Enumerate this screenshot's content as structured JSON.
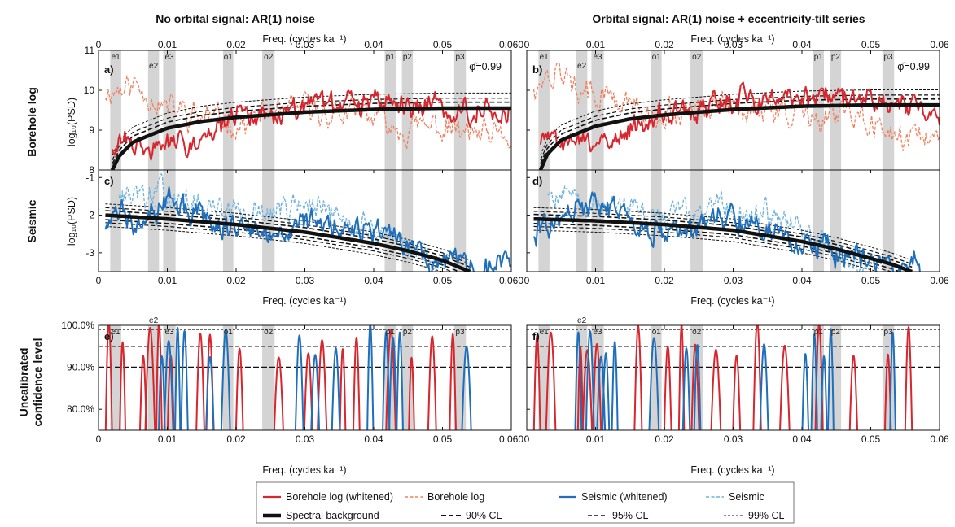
{
  "figure": {
    "col_titles": [
      "No orbital signal: AR(1) noise",
      "Orbital signal: AR(1) noise + eccentricity-tilt series"
    ],
    "row_labels": [
      "Borehole log",
      "Seismic",
      "Uncalibrated",
      "confidence level"
    ],
    "xlabel": "Freq. (cycles ka⁻¹)",
    "ylabel_psd": "log₁₀(PSD)",
    "phi_label": "φ̂=0.99"
  },
  "colors": {
    "borehole_whitened": "#d7262e",
    "borehole_raw": "#f08060",
    "seismic_whitened": "#1f6fba",
    "seismic_raw": "#6fb2dd",
    "background": "#111111",
    "band": "#d4d4d4"
  },
  "legend": {
    "items": [
      {
        "label": "Borehole log (whitened)",
        "style": "borehole_whitened"
      },
      {
        "label": "Borehole log",
        "style": "borehole_raw"
      },
      {
        "label": "Seismic (whitened)",
        "style": "seismic_whitened"
      },
      {
        "label": "Seismic",
        "style": "seismic_raw"
      },
      {
        "label": "Spectral background",
        "style": "background"
      },
      {
        "label": "90% CL",
        "style": "cl90"
      },
      {
        "label": "95% CL",
        "style": "cl95"
      },
      {
        "label": "99% CL",
        "style": "cl99"
      }
    ]
  },
  "chart_data": [
    {
      "type": "line",
      "panel": "a)",
      "title": "No orbital signal: AR(1) noise",
      "ylabel": "log₁₀(PSD)",
      "xlim": [
        0,
        0.06
      ],
      "ylim": [
        8,
        11
      ],
      "xticks": [
        "0",
        "0.01",
        "0.02",
        "0.03",
        "0.04",
        "0.05",
        "0.060"
      ],
      "yticks": [
        "8",
        "9",
        "10",
        "11"
      ],
      "annotation": "φ̂=0.99",
      "bands": [
        {
          "name": "e1",
          "range": [
            0.0017,
            0.0033
          ]
        },
        {
          "name": "e2",
          "range": [
            0.0072,
            0.0088
          ]
        },
        {
          "name": "e3",
          "range": [
            0.0094,
            0.0112
          ]
        },
        {
          "name": "o1",
          "range": [
            0.0181,
            0.0196
          ]
        },
        {
          "name": "o2",
          "range": [
            0.0238,
            0.0256
          ]
        },
        {
          "name": "p1",
          "range": [
            0.0416,
            0.0432
          ]
        },
        {
          "name": "p2",
          "range": [
            0.0441,
            0.0457
          ]
        },
        {
          "name": "p3",
          "range": [
            0.0517,
            0.0534
          ]
        }
      ],
      "background": {
        "x": [
          0.002,
          0.003,
          0.005,
          0.01,
          0.015,
          0.02,
          0.03,
          0.04,
          0.05,
          0.06
        ],
        "y": [
          8.0,
          8.35,
          8.7,
          9.05,
          9.22,
          9.32,
          9.45,
          9.52,
          9.55,
          9.55
        ]
      },
      "series": [
        {
          "name": "Borehole log (whitened)",
          "x": [
            0.002,
            0.005,
            0.01,
            0.02,
            0.03,
            0.04,
            0.05,
            0.06
          ],
          "y": [
            8.7,
            8.6,
            8.5,
            9.3,
            9.6,
            9.7,
            9.6,
            9.5
          ]
        },
        {
          "name": "Borehole log",
          "x": [
            0.001,
            0.005,
            0.01,
            0.02,
            0.03,
            0.04,
            0.05,
            0.06
          ],
          "y": [
            10.0,
            10.2,
            9.6,
            9.2,
            9.5,
            9.3,
            9.0,
            8.6
          ]
        }
      ]
    },
    {
      "type": "line",
      "panel": "b)",
      "title": "Orbital signal: AR(1) noise + eccentricity-tilt series",
      "xlim": [
        0,
        0.06
      ],
      "ylim": [
        8,
        11
      ],
      "xticks": [
        "0",
        "0.01",
        "0.02",
        "0.03",
        "0.04",
        "0.05",
        "0.06"
      ],
      "annotation": "φ̂=0.99",
      "background": {
        "x": [
          0.002,
          0.003,
          0.005,
          0.01,
          0.015,
          0.02,
          0.03,
          0.04,
          0.05,
          0.06
        ],
        "y": [
          8.0,
          8.4,
          8.75,
          9.1,
          9.28,
          9.38,
          9.52,
          9.6,
          9.63,
          9.63
        ]
      },
      "series": [
        {
          "name": "Borehole log (whitened)",
          "x": [
            0.002,
            0.005,
            0.01,
            0.02,
            0.03,
            0.04,
            0.05,
            0.06
          ],
          "y": [
            8.8,
            8.7,
            8.7,
            9.4,
            9.7,
            9.8,
            9.8,
            9.4
          ]
        },
        {
          "name": "Borehole log",
          "x": [
            0.001,
            0.005,
            0.01,
            0.02,
            0.03,
            0.04,
            0.05,
            0.06
          ],
          "y": [
            10.2,
            10.4,
            9.8,
            9.4,
            9.6,
            9.5,
            9.2,
            8.8
          ]
        }
      ]
    },
    {
      "type": "line",
      "panel": "c)",
      "ylabel": "log₁₀(PSD)",
      "xlim": [
        0,
        0.06
      ],
      "ylim": [
        -3.5,
        -0.8
      ],
      "xticks": [
        "0",
        "0.01",
        "0.02",
        "0.03",
        "0.04",
        "0.05",
        "0.060"
      ],
      "yticks": [
        "-3",
        "-2",
        "-1"
      ],
      "background": {
        "x": [
          0.001,
          0.01,
          0.02,
          0.03,
          0.04,
          0.045,
          0.05,
          0.052,
          0.054
        ],
        "y": [
          -2.0,
          -2.1,
          -2.25,
          -2.45,
          -2.75,
          -2.95,
          -3.2,
          -3.35,
          -3.5
        ]
      },
      "series": [
        {
          "name": "Seismic (whitened)",
          "x": [
            0.001,
            0.01,
            0.02,
            0.03,
            0.04,
            0.05,
            0.06
          ],
          "y": [
            -2.2,
            -1.6,
            -2.4,
            -2.2,
            -2.6,
            -3.2,
            -3.4
          ]
        },
        {
          "name": "Seismic",
          "x": [
            0.003,
            0.01,
            0.02,
            0.03,
            0.04,
            0.046,
            0.05
          ],
          "y": [
            -1.4,
            -1.5,
            -2.0,
            -1.7,
            -2.3,
            -3.0,
            -3.4
          ]
        }
      ]
    },
    {
      "type": "line",
      "panel": "d)",
      "xlim": [
        0,
        0.06
      ],
      "ylim": [
        -3.5,
        -0.8
      ],
      "xticks": [
        "0",
        "0.01",
        "0.02",
        "0.03",
        "0.04",
        "0.05",
        "0.06"
      ],
      "background": {
        "x": [
          0.001,
          0.01,
          0.02,
          0.03,
          0.04,
          0.045,
          0.05,
          0.053,
          0.056
        ],
        "y": [
          -2.1,
          -2.15,
          -2.25,
          -2.4,
          -2.7,
          -2.9,
          -3.15,
          -3.3,
          -3.5
        ]
      },
      "series": [
        {
          "name": "Seismic (whitened)",
          "x": [
            0.001,
            0.01,
            0.02,
            0.03,
            0.04,
            0.05,
            0.06
          ],
          "y": [
            -2.4,
            -1.7,
            -2.5,
            -2.1,
            -2.7,
            -3.2,
            -3.4
          ]
        },
        {
          "name": "Seismic",
          "x": [
            0.003,
            0.01,
            0.02,
            0.03,
            0.04,
            0.046,
            0.05
          ],
          "y": [
            -1.3,
            -1.6,
            -2.1,
            -1.8,
            -2.4,
            -3.0,
            -3.4
          ]
        }
      ]
    },
    {
      "type": "line",
      "panel": "e)",
      "xlabel": "Freq. (cycles ka⁻¹)",
      "xlim": [
        0,
        0.06
      ],
      "ylim": [
        75,
        100
      ],
      "xticks": [
        "0",
        "0.01",
        "0.02",
        "0.03",
        "0.04",
        "0.05",
        "0.060"
      ],
      "yticks": [
        "80.0%",
        "90.0%",
        "100.0%"
      ],
      "confidence_lines": [
        90,
        95,
        99
      ],
      "series": [
        {
          "name": "Borehole log (whitened)",
          "peaks": [
            0.0015,
            0.0035,
            0.0065,
            0.0075,
            0.0088,
            0.0105,
            0.0148,
            0.0162,
            0.0205,
            0.0262,
            0.0305,
            0.0325,
            0.0355,
            0.0375,
            0.0425,
            0.0455,
            0.0485,
            0.0515
          ]
        },
        {
          "name": "Seismic (whitened)",
          "peaks": [
            0.0092,
            0.0102,
            0.0115,
            0.0125,
            0.0162,
            0.0185,
            0.0292,
            0.0315,
            0.0345,
            0.0395,
            0.0418,
            0.0428,
            0.0438,
            0.0535
          ]
        }
      ]
    },
    {
      "type": "line",
      "panel": "f)",
      "xlabel": "Freq. (cycles ka⁻¹)",
      "xlim": [
        0,
        0.06
      ],
      "ylim": [
        75,
        100
      ],
      "xticks": [
        "0",
        "0.01",
        "0.02",
        "0.03",
        "0.04",
        "0.05",
        "0.06"
      ],
      "confidence_lines": [
        90,
        95,
        99
      ],
      "series": [
        {
          "name": "Borehole log (whitened)",
          "peaks": [
            0.0015,
            0.0035,
            0.0078,
            0.0088,
            0.0102,
            0.0162,
            0.0205,
            0.0225,
            0.0245,
            0.0275,
            0.0305,
            0.0335,
            0.0375,
            0.0425,
            0.0475,
            0.0525,
            0.0555
          ]
        },
        {
          "name": "Seismic (whitened)",
          "peaks": [
            0.0075,
            0.0092,
            0.0108,
            0.0115,
            0.0128,
            0.0185,
            0.0232,
            0.0248,
            0.0345,
            0.0405,
            0.0418,
            0.0432,
            0.0442,
            0.0532
          ]
        }
      ]
    }
  ]
}
